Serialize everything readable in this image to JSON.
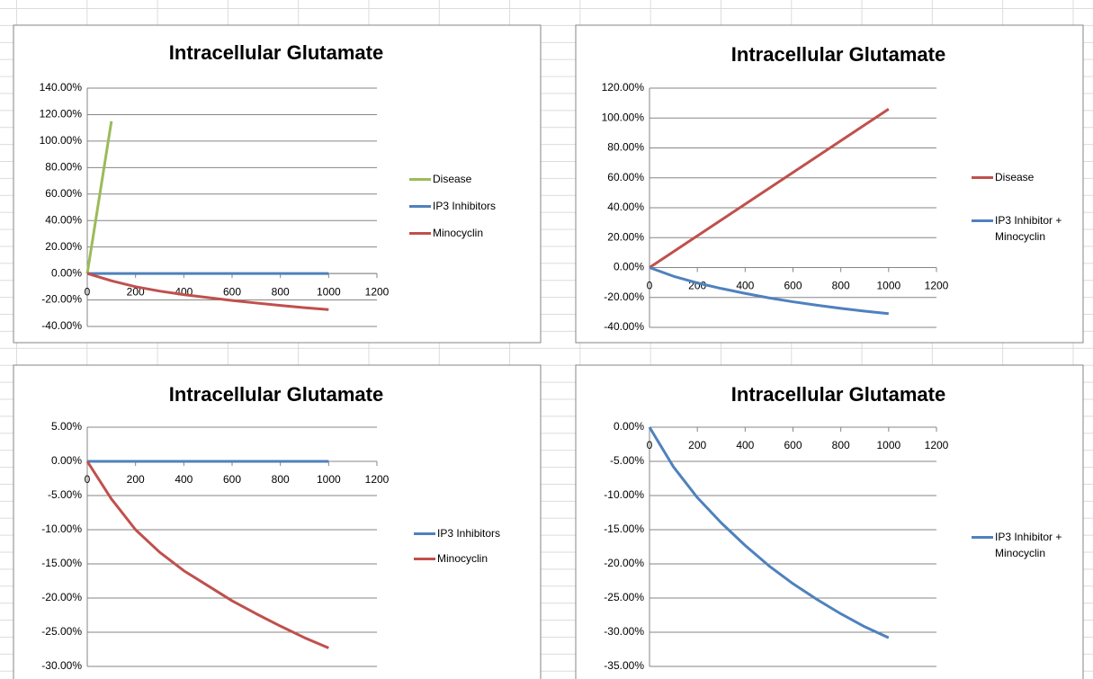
{
  "chart_data": [
    {
      "type": "line",
      "title": "Intracellular Glutamate",
      "x": [
        0,
        100,
        200,
        300,
        400,
        500,
        600,
        700,
        800,
        900,
        1000
      ],
      "series": [
        {
          "name": "Disease",
          "color": "#9bbb59",
          "values": [
            0,
            115,
            null,
            null,
            null,
            null,
            null,
            null,
            null,
            null,
            null
          ]
        },
        {
          "name": "IP3 Inhibitors",
          "color": "#4f81bd",
          "values": [
            0,
            0,
            0,
            0,
            0,
            0,
            0,
            0,
            0,
            0,
            0
          ]
        },
        {
          "name": "Minocyclin",
          "color": "#c0504d",
          "values": [
            0,
            -5.5,
            -10,
            -13.3,
            -16,
            -18.2,
            -20.4,
            -22.3,
            -24.1,
            -25.8,
            -27.3
          ]
        }
      ],
      "xlim": [
        0,
        1200
      ],
      "xticks": [
        0,
        200,
        400,
        600,
        800,
        1000,
        1200
      ],
      "ylim": [
        -40,
        140
      ],
      "yticks": [
        {
          "value": -40,
          "label": "-40.00%"
        },
        {
          "value": -20,
          "label": "-20.00%"
        },
        {
          "value": 0,
          "label": "0.00%"
        },
        {
          "value": 20,
          "label": "20.00%"
        },
        {
          "value": 40,
          "label": "40.00%"
        },
        {
          "value": 60,
          "label": "60.00%"
        },
        {
          "value": 80,
          "label": "80.00%"
        },
        {
          "value": 100,
          "label": "100.00%"
        },
        {
          "value": 120,
          "label": "120.00%"
        },
        {
          "value": 140,
          "label": "140.00%"
        }
      ],
      "grid": true,
      "legend": "right"
    },
    {
      "type": "line",
      "title": "Intracellular Glutamate",
      "x": [
        0,
        100,
        200,
        300,
        400,
        500,
        600,
        700,
        800,
        900,
        1000
      ],
      "series": [
        {
          "name": "Disease",
          "color": "#c0504d",
          "values": [
            0,
            10.6,
            21.2,
            31.8,
            42.4,
            53,
            63.6,
            74.2,
            84.8,
            95.4,
            106
          ]
        },
        {
          "name": "IP3 Inhibitor + Minocyclin",
          "color": "#4f81bd",
          "values": [
            0,
            -5.8,
            -10.3,
            -14,
            -17.3,
            -20.3,
            -22.9,
            -25.2,
            -27.3,
            -29.2,
            -30.8
          ]
        }
      ],
      "xlim": [
        0,
        1200
      ],
      "xticks": [
        0,
        200,
        400,
        600,
        800,
        1000,
        1200
      ],
      "ylim": [
        -40,
        120
      ],
      "yticks": [
        {
          "value": -40,
          "label": "-40.00%"
        },
        {
          "value": -20,
          "label": "-20.00%"
        },
        {
          "value": 0,
          "label": "0.00%"
        },
        {
          "value": 20,
          "label": "20.00%"
        },
        {
          "value": 40,
          "label": "40.00%"
        },
        {
          "value": 60,
          "label": "60.00%"
        },
        {
          "value": 80,
          "label": "80.00%"
        },
        {
          "value": 100,
          "label": "100.00%"
        },
        {
          "value": 120,
          "label": "120.00%"
        }
      ],
      "grid": true,
      "legend": "right"
    },
    {
      "type": "line",
      "title": "Intracellular Glutamate",
      "x": [
        0,
        100,
        200,
        300,
        400,
        500,
        600,
        700,
        800,
        900,
        1000
      ],
      "series": [
        {
          "name": "IP3 Inhibitors",
          "color": "#4f81bd",
          "values": [
            0,
            0,
            0,
            0,
            0,
            0,
            0,
            0,
            0,
            0,
            0
          ]
        },
        {
          "name": "Minocyclin",
          "color": "#c0504d",
          "values": [
            0,
            -5.5,
            -10,
            -13.3,
            -16,
            -18.2,
            -20.4,
            -22.3,
            -24.1,
            -25.8,
            -27.3
          ]
        }
      ],
      "xlim": [
        0,
        1200
      ],
      "xticks": [
        0,
        200,
        400,
        600,
        800,
        1000,
        1200
      ],
      "ylim": [
        -30,
        5
      ],
      "yticks": [
        {
          "value": -30,
          "label": "-30.00%"
        },
        {
          "value": -25,
          "label": "-25.00%"
        },
        {
          "value": -20,
          "label": "-20.00%"
        },
        {
          "value": -15,
          "label": "-15.00%"
        },
        {
          "value": -10,
          "label": "-10.00%"
        },
        {
          "value": -5,
          "label": "-5.00%"
        },
        {
          "value": 0,
          "label": "0.00%"
        },
        {
          "value": 5,
          "label": "5.00%"
        }
      ],
      "grid": true,
      "legend": "right"
    },
    {
      "type": "line",
      "title": "Intracellular Glutamate",
      "x": [
        0,
        100,
        200,
        300,
        400,
        500,
        600,
        700,
        800,
        900,
        1000
      ],
      "series": [
        {
          "name": "IP3 Inhibitor + Minocyclin",
          "color": "#4f81bd",
          "values": [
            0,
            -5.8,
            -10.3,
            -14,
            -17.3,
            -20.3,
            -22.9,
            -25.2,
            -27.3,
            -29.2,
            -30.8
          ]
        }
      ],
      "xlim": [
        0,
        1200
      ],
      "xticks": [
        0,
        200,
        400,
        600,
        800,
        1000,
        1200
      ],
      "ylim": [
        -35,
        0
      ],
      "yticks": [
        {
          "value": -35,
          "label": "-35.00%"
        },
        {
          "value": -30,
          "label": "-30.00%"
        },
        {
          "value": -25,
          "label": "-25.00%"
        },
        {
          "value": -20,
          "label": "-20.00%"
        },
        {
          "value": -15,
          "label": "-15.00%"
        },
        {
          "value": -10,
          "label": "-10.00%"
        },
        {
          "value": -5,
          "label": "-5.00%"
        },
        {
          "value": 0,
          "label": "0.00%"
        }
      ],
      "grid": true,
      "legend": "right"
    }
  ]
}
